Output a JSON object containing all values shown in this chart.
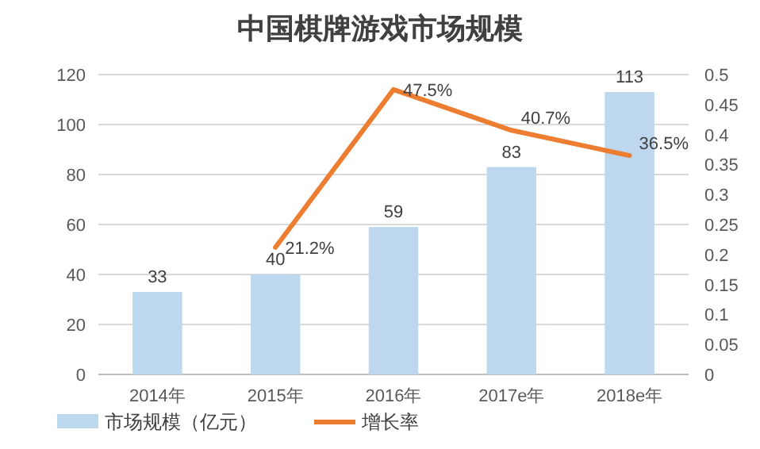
{
  "chart_data": {
    "type": "bar",
    "title": "中国棋牌游戏市场规模",
    "categories": [
      "2014年",
      "2015年",
      "2016年",
      "2017e年",
      "2018e年"
    ],
    "series": [
      {
        "name": "市场规模（亿元）",
        "color": "#bdd7ee",
        "values": [
          33,
          40,
          59,
          83,
          113
        ],
        "value_labels": [
          "33",
          "40",
          "59",
          "83",
          "113"
        ]
      },
      {
        "name": "增长率",
        "type": "line",
        "axis": "y2",
        "color": "#ed7d31",
        "values": [
          null,
          0.212,
          0.475,
          0.407,
          0.365
        ],
        "value_labels": [
          null,
          "21.2%",
          "47.5%",
          "40.7%",
          "36.5%"
        ]
      }
    ],
    "ylim": [
      0,
      120
    ],
    "yticks": [
      0,
      20,
      40,
      60,
      80,
      100,
      120
    ],
    "y2lim": [
      0,
      0.5
    ],
    "y2ticks": [
      0,
      0.05,
      0.1,
      0.15,
      0.2,
      0.25,
      0.3,
      0.35,
      0.4,
      0.45,
      0.5
    ],
    "grid": "y",
    "legend": "bottom"
  }
}
